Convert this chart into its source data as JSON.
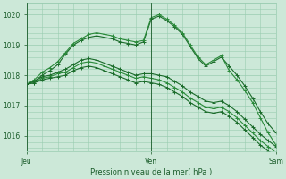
{
  "background_color": "#cce8d8",
  "grid_color": "#99ccb0",
  "line_color_1": "#1a6b2a",
  "line_color_2": "#2a8a3a",
  "line_color_3": "#1a6b2a",
  "xlabel": "Pression niveau de la mer( hPa )",
  "ylim": [
    1015.5,
    1020.4
  ],
  "yticks": [
    1016,
    1017,
    1018,
    1019,
    1020
  ],
  "xtick_labels": [
    "Jeu",
    "Ven",
    "Sam"
  ],
  "xtick_positions": [
    0,
    16,
    32
  ],
  "n_points": 33,
  "series": [
    [
      1017.7,
      1017.8,
      1018.0,
      1018.15,
      1018.35,
      1018.7,
      1019.0,
      1019.15,
      1019.25,
      1019.3,
      1019.25,
      1019.2,
      1019.1,
      1019.05,
      1019.0,
      1019.1,
      1019.85,
      1019.95,
      1019.8,
      1019.6,
      1019.35,
      1018.95,
      1018.55,
      1018.3,
      1018.45,
      1018.6,
      1018.3,
      1018.0,
      1017.65,
      1017.25,
      1016.8,
      1016.4,
      1016.1
    ],
    [
      1017.7,
      1017.85,
      1018.1,
      1018.25,
      1018.45,
      1018.75,
      1019.05,
      1019.2,
      1019.35,
      1019.4,
      1019.35,
      1019.3,
      1019.2,
      1019.15,
      1019.1,
      1019.15,
      1019.9,
      1020.0,
      1019.85,
      1019.65,
      1019.4,
      1019.0,
      1018.6,
      1018.35,
      1018.5,
      1018.65,
      1018.15,
      1017.85,
      1017.5,
      1017.1,
      1016.6,
      1016.1,
      1015.7
    ],
    [
      1017.7,
      1017.8,
      1017.95,
      1018.0,
      1018.1,
      1018.2,
      1018.35,
      1018.5,
      1018.55,
      1018.5,
      1018.4,
      1018.3,
      1018.2,
      1018.1,
      1018.0,
      1018.05,
      1018.05,
      1018.0,
      1017.95,
      1017.8,
      1017.65,
      1017.45,
      1017.3,
      1017.15,
      1017.1,
      1017.15,
      1017.0,
      1016.8,
      1016.55,
      1016.3,
      1016.05,
      1015.85,
      1015.65
    ],
    [
      1017.7,
      1017.75,
      1017.9,
      1017.95,
      1018.05,
      1018.1,
      1018.25,
      1018.4,
      1018.45,
      1018.4,
      1018.3,
      1018.2,
      1018.1,
      1018.0,
      1017.9,
      1017.95,
      1017.9,
      1017.85,
      1017.75,
      1017.6,
      1017.45,
      1017.25,
      1017.1,
      1016.95,
      1016.9,
      1016.95,
      1016.8,
      1016.6,
      1016.35,
      1016.1,
      1015.85,
      1015.65,
      1015.45
    ],
    [
      1017.7,
      1017.75,
      1017.85,
      1017.9,
      1017.95,
      1018.0,
      1018.15,
      1018.25,
      1018.3,
      1018.25,
      1018.15,
      1018.05,
      1017.95,
      1017.85,
      1017.75,
      1017.8,
      1017.75,
      1017.7,
      1017.6,
      1017.45,
      1017.3,
      1017.1,
      1016.95,
      1016.8,
      1016.75,
      1016.8,
      1016.65,
      1016.45,
      1016.2,
      1015.95,
      1015.7,
      1015.5,
      1015.3
    ]
  ],
  "line_widths": [
    1.0,
    1.0,
    1.0,
    1.0,
    1.0
  ],
  "line_colors": [
    "#1a6b2a",
    "#2a8a3a",
    "#1a6b2a",
    "#2a8a3a",
    "#1a6b2a"
  ]
}
